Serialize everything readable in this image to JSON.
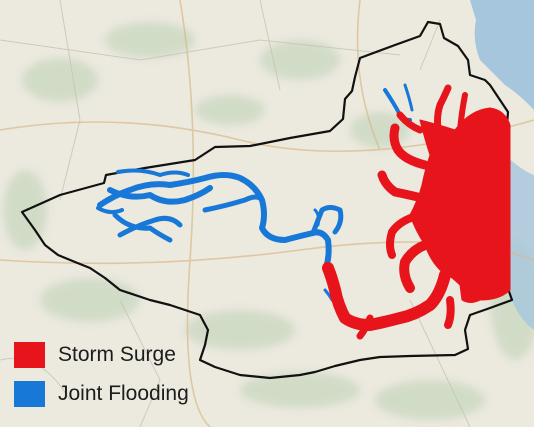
{
  "map": {
    "background_color": "#ece9df",
    "boundary_color": "#111111",
    "storm_surge_color": "#e8141c",
    "joint_flooding_color": "#1878d8",
    "water_color": "#a6c6dd",
    "vegetation_color": "#c9d8c0"
  },
  "legend": {
    "items": [
      {
        "label": "Storm Surge",
        "color": "#e8141c"
      },
      {
        "label": "Joint Flooding",
        "color": "#1878d8"
      }
    ]
  }
}
